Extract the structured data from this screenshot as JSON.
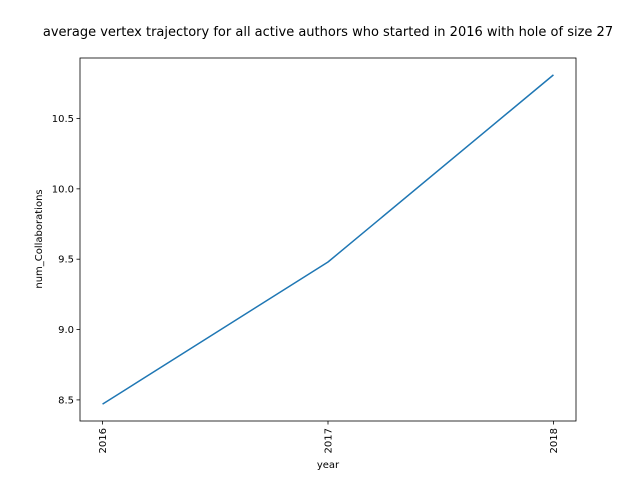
{
  "chart_data": {
    "type": "line",
    "title": "average vertex trajectory for all active authors who started in 2016 with hole of size 27",
    "xlabel": "year",
    "ylabel": "num_Collaborations",
    "categories": [
      "2016",
      "2017",
      "2018"
    ],
    "x": [
      2016,
      2017,
      2018
    ],
    "series": [
      {
        "values": [
          8.47,
          9.48,
          10.81
        ],
        "color": "#1f77b4"
      }
    ],
    "xlim": [
      2015.9,
      2018.1
    ],
    "ylim": [
      8.35,
      10.93
    ],
    "yticks": [
      8.5,
      9.0,
      9.5,
      10.0,
      10.5
    ],
    "ytick_labels": [
      "8.5",
      "9.0",
      "9.5",
      "10.0",
      "10.5"
    ],
    "xtick_labels": [
      "2016",
      "2017",
      "2018"
    ],
    "xtick_rotation": 90,
    "grid": false,
    "legend": false
  }
}
